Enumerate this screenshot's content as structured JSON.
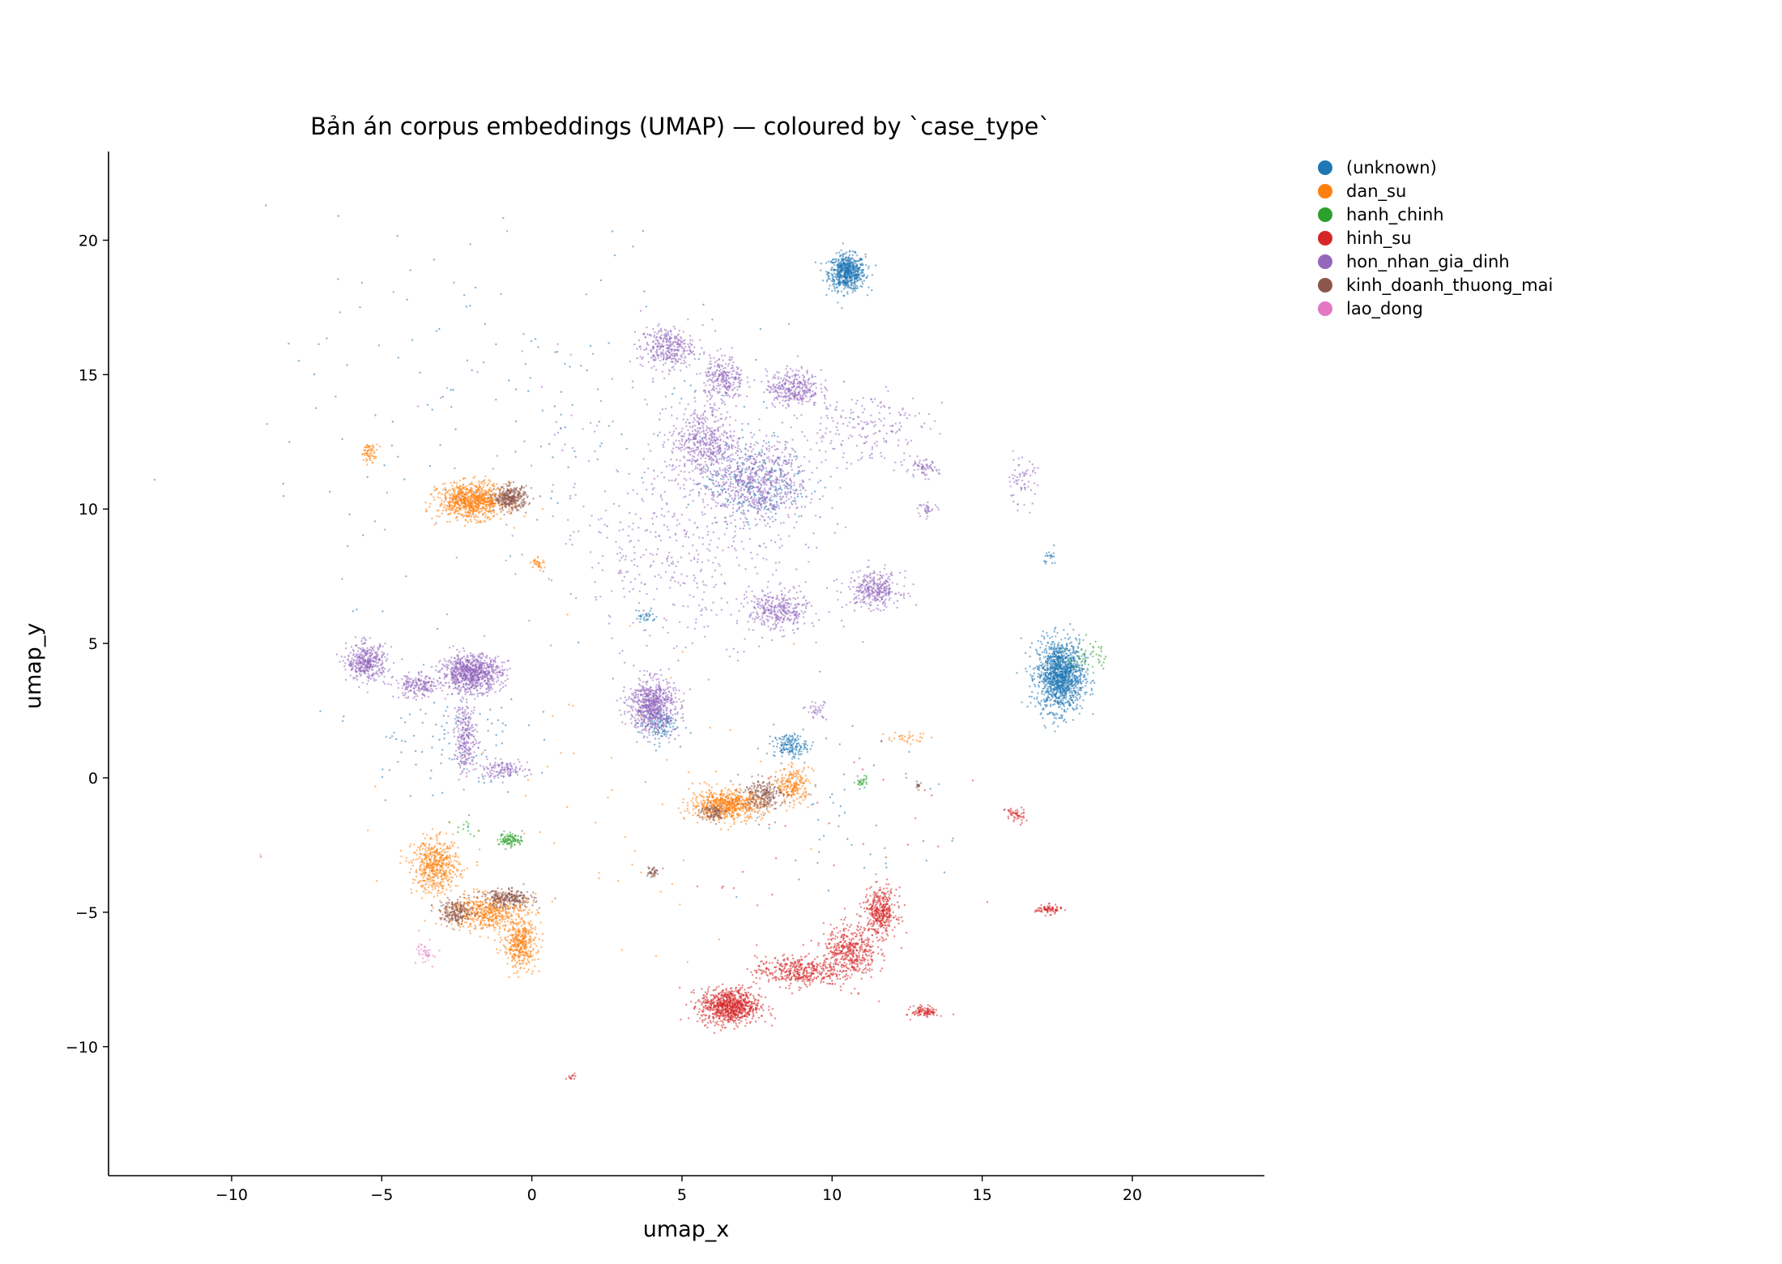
{
  "chart_data": {
    "type": "scatter",
    "title": "Bản án corpus embeddings (UMAP) — coloured by `case_type`",
    "xlabel": "umap_x",
    "ylabel": "umap_y",
    "xlim": [
      -14.1,
      24.4
    ],
    "ylim": [
      -14.8,
      23.3
    ],
    "xticks": [
      -10,
      -5,
      0,
      5,
      10,
      15,
      20
    ],
    "yticks": [
      -10,
      -5,
      0,
      5,
      10,
      15,
      20
    ],
    "xtick_labels": [
      "−10",
      "−5",
      "0",
      "5",
      "10",
      "15",
      "20"
    ],
    "ytick_labels": [
      "−10",
      "−5",
      "0",
      "5",
      "10",
      "15",
      "20"
    ],
    "grid": false,
    "legend_position": "outside-top-right",
    "series": [
      {
        "name": "(unknown)",
        "color": "#1f77b4",
        "clusters": [
          [
            10.5,
            18.8,
            0.55,
            0.6,
            1.0
          ],
          [
            17.6,
            3.8,
            0.7,
            1.2,
            2.0
          ],
          [
            8.6,
            1.2,
            0.5,
            0.4,
            0.25
          ],
          [
            4.2,
            2.0,
            0.6,
            0.6,
            0.2
          ],
          [
            7.5,
            11.0,
            1.6,
            1.4,
            0.4
          ],
          [
            3.8,
            6.0,
            0.3,
            0.3,
            0.05
          ],
          [
            -3.0,
            1.5,
            2.5,
            2.0,
            0.15
          ],
          [
            0,
            14,
            8,
            6,
            0.25
          ],
          [
            17.3,
            8.2,
            0.2,
            0.3,
            0.03
          ],
          [
            10.5,
            -1.5,
            4,
            3,
            0.1
          ]
        ]
      },
      {
        "name": "dan_su",
        "color": "#ff7f0e",
        "clusters": [
          [
            -2.0,
            10.3,
            1.0,
            0.6,
            1.3
          ],
          [
            -5.4,
            12.1,
            0.25,
            0.3,
            0.1
          ],
          [
            0.2,
            8.0,
            0.2,
            0.2,
            0.05
          ],
          [
            6.5,
            -1.0,
            1.1,
            0.5,
            1.0
          ],
          [
            8.7,
            -0.3,
            0.5,
            0.6,
            0.35
          ],
          [
            -3.2,
            -3.3,
            0.7,
            0.9,
            0.8
          ],
          [
            -1.5,
            -5.0,
            1.2,
            0.6,
            0.8
          ],
          [
            -0.4,
            -6.2,
            0.5,
            0.8,
            0.6
          ],
          [
            12.5,
            1.5,
            0.6,
            0.2,
            0.05
          ],
          [
            2,
            -1,
            6,
            5,
            0.1
          ]
        ]
      },
      {
        "name": "hanh_chinh",
        "color": "#2ca02c",
        "clusters": [
          [
            -0.7,
            -2.3,
            0.35,
            0.25,
            0.15
          ],
          [
            11.0,
            -0.1,
            0.2,
            0.2,
            0.04
          ],
          [
            18.5,
            4.5,
            0.6,
            0.6,
            0.08
          ],
          [
            -2.2,
            -1.8,
            0.4,
            0.4,
            0.02
          ]
        ]
      },
      {
        "name": "hinh_su",
        "color": "#d62728",
        "clusters": [
          [
            6.6,
            -8.5,
            0.9,
            0.6,
            1.3
          ],
          [
            8.8,
            -7.2,
            1.2,
            0.5,
            0.6
          ],
          [
            10.6,
            -6.5,
            0.8,
            0.9,
            0.7
          ],
          [
            11.6,
            -5.0,
            0.5,
            0.8,
            0.6
          ],
          [
            13.1,
            -8.7,
            0.4,
            0.2,
            0.15
          ],
          [
            17.2,
            -4.9,
            0.4,
            0.15,
            0.12
          ],
          [
            16.1,
            -1.4,
            0.3,
            0.3,
            0.08
          ],
          [
            1.3,
            -11.1,
            0.15,
            0.1,
            0.02
          ],
          [
            10,
            -3,
            5,
            4,
            0.05
          ]
        ]
      },
      {
        "name": "hon_nhan_gia_dinh",
        "color": "#9467bd",
        "clusters": [
          [
            -2.0,
            3.9,
            0.9,
            0.6,
            1.3
          ],
          [
            -5.5,
            4.3,
            0.6,
            0.6,
            0.6
          ],
          [
            -3.8,
            3.4,
            0.7,
            0.4,
            0.3
          ],
          [
            -2.2,
            1.5,
            0.35,
            1.2,
            0.4
          ],
          [
            -1.0,
            0.3,
            0.8,
            0.3,
            0.2
          ],
          [
            4.0,
            2.7,
            0.7,
            0.9,
            1.1
          ],
          [
            7.5,
            11.0,
            1.5,
            1.3,
            1.0
          ],
          [
            5.7,
            12.5,
            1.0,
            1.2,
            0.7
          ],
          [
            4.5,
            16.0,
            0.8,
            0.7,
            0.5
          ],
          [
            8.7,
            14.5,
            0.8,
            0.6,
            0.5
          ],
          [
            6.4,
            14.8,
            0.6,
            0.8,
            0.4
          ],
          [
            11.4,
            7.0,
            0.8,
            0.6,
            0.5
          ],
          [
            8.2,
            6.2,
            0.9,
            0.7,
            0.5
          ],
          [
            5.5,
            8.5,
            3.5,
            3.0,
            0.6
          ],
          [
            11.0,
            13.0,
            2.0,
            1.3,
            0.3
          ],
          [
            13.0,
            11.5,
            0.5,
            0.3,
            0.1
          ],
          [
            16.3,
            11.0,
            0.5,
            0.8,
            0.1
          ],
          [
            13.2,
            10.0,
            0.3,
            0.2,
            0.05
          ],
          [
            9.5,
            2.5,
            0.3,
            0.3,
            0.05
          ],
          [
            3.5,
            11,
            7,
            6,
            0.25
          ]
        ]
      },
      {
        "name": "kinh_doanh_thuong_mai",
        "color": "#8c564b",
        "clusters": [
          [
            -0.7,
            10.4,
            0.5,
            0.4,
            0.5
          ],
          [
            -0.8,
            -4.5,
            0.8,
            0.3,
            0.4
          ],
          [
            -2.5,
            -5.0,
            0.5,
            0.4,
            0.3
          ],
          [
            7.7,
            -0.6,
            0.6,
            0.5,
            0.35
          ],
          [
            4.0,
            -3.5,
            0.2,
            0.2,
            0.06
          ],
          [
            6.0,
            -1.3,
            0.4,
            0.3,
            0.15
          ],
          [
            12.9,
            -0.3,
            0.1,
            0.1,
            0.02
          ]
        ]
      },
      {
        "name": "lao_dong",
        "color": "#e377c2",
        "clusters": [
          [
            -3.5,
            -6.5,
            0.3,
            0.5,
            0.06
          ],
          [
            -9.0,
            -3.0,
            0.1,
            0.1,
            0.005
          ]
        ]
      }
    ]
  }
}
